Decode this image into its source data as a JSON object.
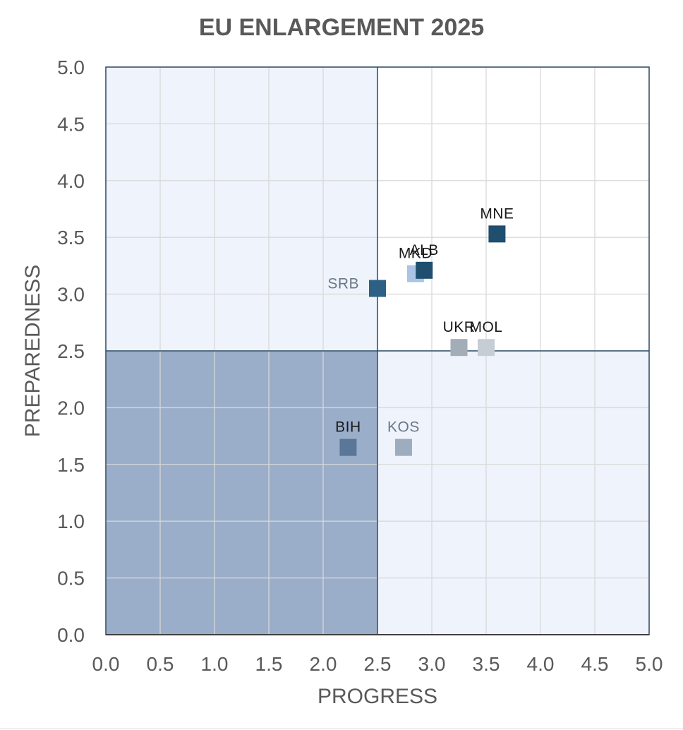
{
  "chart_data": {
    "type": "scatter",
    "title": "EU ENLARGEMENT 2025",
    "xlabel": "PROGRESS",
    "ylabel": "PREPAREDNESS",
    "xlim": [
      0,
      5
    ],
    "ylim": [
      0,
      5
    ],
    "x_ticks": [
      "0.0",
      "0.5",
      "1.0",
      "1.5",
      "2.0",
      "2.5",
      "3.0",
      "3.5",
      "4.0",
      "4.5",
      "5.0"
    ],
    "y_ticks": [
      "0.0",
      "0.5",
      "1.0",
      "1.5",
      "2.0",
      "2.5",
      "3.0",
      "3.5",
      "4.0",
      "4.5",
      "5.0"
    ],
    "grid": true,
    "quadrant_split": {
      "x": 2.5,
      "y": 2.5
    },
    "quadrant_colors": {
      "low_low": "#9aadc9",
      "low_high": "#eef3fc",
      "high_low": "#eef3fc",
      "high_high": "#ffffff"
    },
    "points": [
      {
        "label": "MNE",
        "x": 3.6,
        "y": 3.53,
        "color": "#1f4e6e",
        "label_color": "#1a1a1a",
        "label_pos": "above"
      },
      {
        "label": "MKD",
        "x": 2.85,
        "y": 3.18,
        "color": "#a9c4e4",
        "label_color": "#1a1a1a",
        "label_pos": "above"
      },
      {
        "label": "ALB",
        "x": 2.93,
        "y": 3.21,
        "color": "#1f4e6e",
        "label_color": "#1a1a1a",
        "label_pos": "above"
      },
      {
        "label": "SRB",
        "x": 2.5,
        "y": 3.05,
        "color": "#2e5f84",
        "label_color": "#6b7787",
        "label_pos": "left"
      },
      {
        "label": "UKR",
        "x": 3.25,
        "y": 2.53,
        "color": "#a3adb8",
        "label_color": "#1a1a1a",
        "label_pos": "above"
      },
      {
        "label": "MOL",
        "x": 3.5,
        "y": 2.53,
        "color": "#c6cdd4",
        "label_color": "#1a1a1a",
        "label_pos": "above"
      },
      {
        "label": "BIH",
        "x": 2.23,
        "y": 1.65,
        "color": "#5a7698",
        "label_color": "#1a1a1a",
        "label_pos": "above"
      },
      {
        "label": "KOS",
        "x": 2.74,
        "y": 1.65,
        "color": "#9dadbe",
        "label_color": "#6b7787",
        "label_pos": "above"
      }
    ]
  }
}
